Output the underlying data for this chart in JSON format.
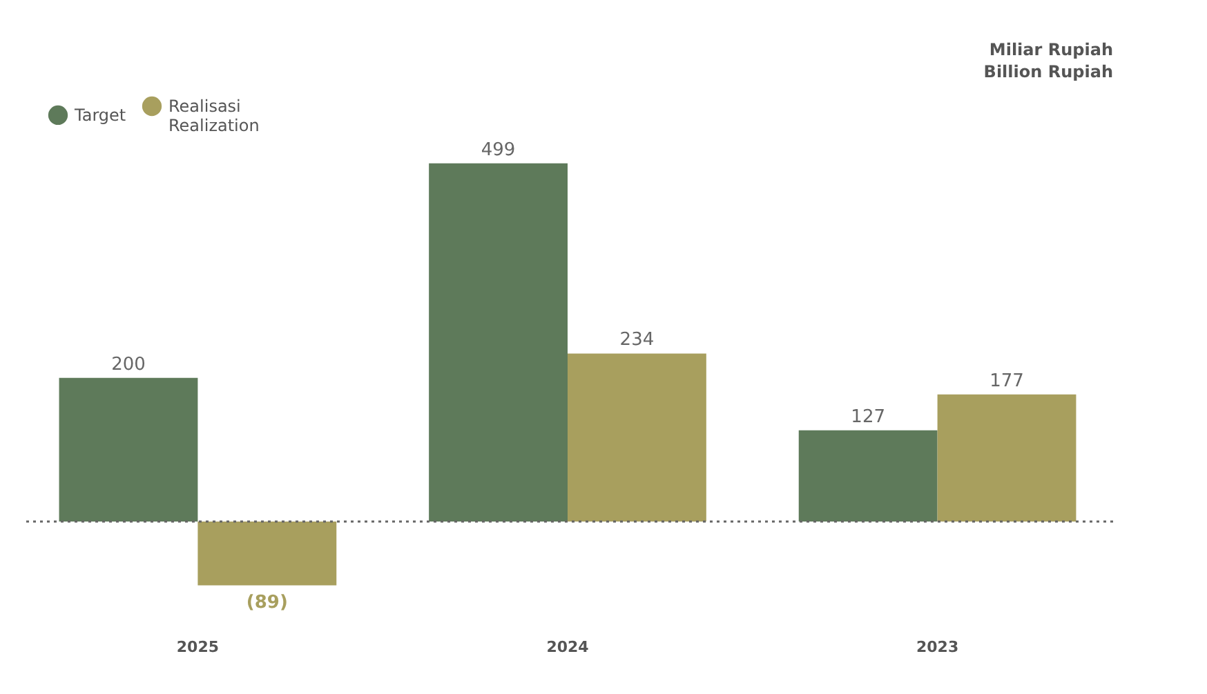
{
  "chart_data": {
    "type": "bar",
    "categories": [
      "2025",
      "2024",
      "2023"
    ],
    "ylabel": "Miliar Rupiah\nBillion Rupiah",
    "legend": "top left",
    "ref_lines": [
      {
        "axis": "y",
        "value": 0,
        "color": "#666666",
        "line_style": "dotted"
      }
    ],
    "series": [
      {
        "name": "Target",
        "color": "#5e7a5a",
        "values": [
          200,
          499,
          127
        ],
        "value_labels": [
          "200",
          "499",
          "127"
        ]
      },
      {
        "name": "Realisasi\nRealization",
        "color": "#a89f5e",
        "values": [
          -89,
          234,
          177
        ],
        "value_labels": [
          "(89)",
          "234",
          "177"
        ]
      }
    ]
  }
}
